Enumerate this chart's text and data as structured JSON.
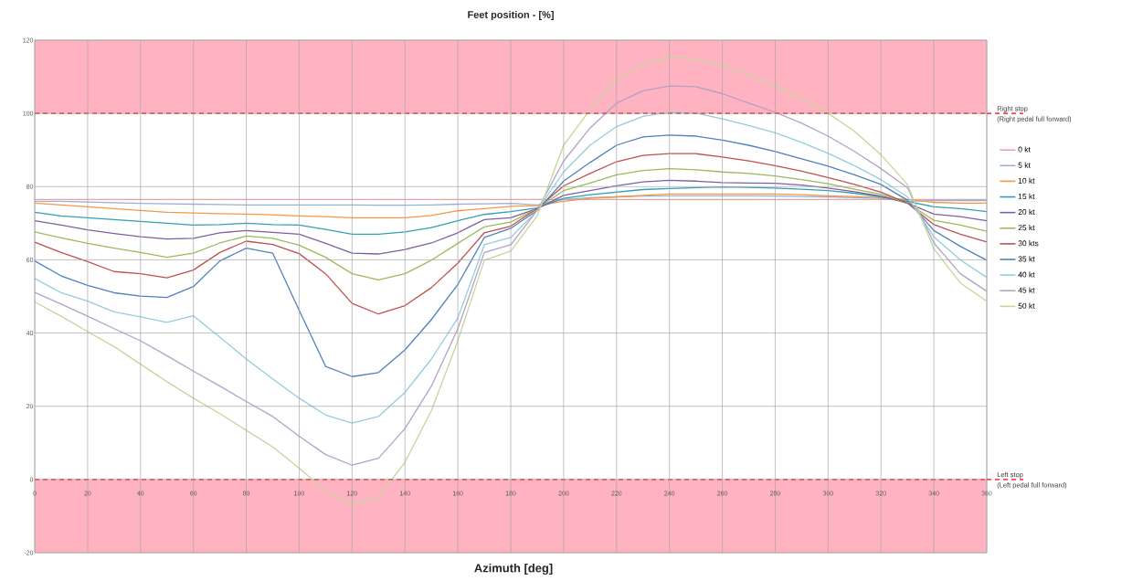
{
  "chart_data": {
    "type": "line",
    "title": "Feet position - [%]",
    "xlabel": "Azimuth [deg]",
    "x": [
      0,
      10,
      20,
      30,
      40,
      50,
      60,
      70,
      80,
      90,
      100,
      110,
      120,
      130,
      140,
      150,
      160,
      170,
      180,
      190,
      200,
      210,
      220,
      230,
      240,
      250,
      260,
      270,
      280,
      290,
      300,
      310,
      320,
      330,
      340,
      350,
      360
    ],
    "series": [
      {
        "name": "0 kt",
        "color": "#e6a5a5",
        "values": [
          76.5,
          76.5,
          76.5,
          76.5,
          76.5,
          76.5,
          76.5,
          76.5,
          76.5,
          76.5,
          76.5,
          76.5,
          76.5,
          76.5,
          76.5,
          76.5,
          76.5,
          76.5,
          76.5,
          76.5,
          76.5,
          76.5,
          76.5,
          76.5,
          76.5,
          76.5,
          76.5,
          76.5,
          76.5,
          76.5,
          76.5,
          76.5,
          76.5,
          76.5,
          76.5,
          76.5,
          76.5
        ]
      },
      {
        "name": "5 kt",
        "color": "#95b3d7",
        "values": [
          76,
          76,
          75.8,
          75.6,
          75.4,
          75.3,
          75.2,
          75.1,
          75,
          75,
          75,
          75,
          75,
          74.9,
          74.9,
          75,
          75.2,
          75.3,
          75.4,
          75,
          76.5,
          77,
          77.2,
          77.4,
          77.5,
          77.5,
          77.5,
          77.5,
          77.4,
          77.3,
          77.2,
          77,
          76.8,
          76,
          76.2,
          76.2,
          76.2
        ]
      },
      {
        "name": "10 kt",
        "color": "#f79646",
        "values": [
          75.5,
          75,
          74.5,
          74,
          73.5,
          73,
          72.8,
          72.6,
          72.5,
          72.3,
          72,
          71.8,
          71.5,
          71.5,
          71.5,
          72.1,
          73.4,
          74,
          74.6,
          74.8,
          76,
          76.8,
          77.2,
          77.6,
          78,
          78,
          78,
          78,
          78,
          77.8,
          77.5,
          77.3,
          77,
          76.5,
          75.7,
          75.5,
          75.5
        ]
      },
      {
        "name": "15 kt",
        "color": "#31a0b5",
        "values": [
          73,
          72,
          71.5,
          71,
          70.5,
          70,
          69.5,
          69.6,
          70,
          69.6,
          69.5,
          68.3,
          67,
          67,
          67.6,
          68.8,
          70.7,
          72.4,
          73.2,
          74.2,
          76.8,
          77.8,
          78.5,
          79.2,
          79.5,
          79.7,
          79.9,
          79.8,
          79.6,
          79.3,
          78.9,
          78.2,
          77.2,
          76,
          74.5,
          74,
          73.2
        ]
      },
      {
        "name": "20 kt",
        "color": "#7f5fa0",
        "values": [
          70.7,
          69.5,
          68.2,
          67.2,
          66.3,
          65.7,
          65.9,
          67.4,
          68,
          67.5,
          67,
          64.5,
          61.8,
          61.6,
          62.8,
          64.6,
          67.4,
          71,
          71.5,
          74,
          77.6,
          78.9,
          80.2,
          81.3,
          81.7,
          81.5,
          81.1,
          81,
          80.9,
          80.4,
          79.6,
          78.6,
          77.4,
          75.5,
          72.5,
          71.8,
          70.7
        ]
      },
      {
        "name": "25 kt",
        "color": "#9bbb59",
        "values": [
          67.6,
          66,
          64.5,
          63.2,
          62,
          60.7,
          61.8,
          64.6,
          66.5,
          65.9,
          64,
          60.7,
          56.2,
          54.5,
          56.2,
          59.9,
          64.5,
          69,
          70.3,
          74,
          78.9,
          81,
          83.2,
          84.4,
          84.9,
          84.6,
          84,
          83.6,
          82.9,
          81.9,
          80.8,
          79.3,
          77.9,
          75.5,
          70.8,
          69.5,
          67.8
        ]
      },
      {
        "name": "30 kts",
        "color": "#c0504d",
        "values": [
          64.8,
          62,
          59.5,
          56.8,
          56.2,
          55.1,
          57.2,
          62,
          65.1,
          64.2,
          61.7,
          56.2,
          48.1,
          45.2,
          47.5,
          52.4,
          59.1,
          67.4,
          69.2,
          74,
          80.2,
          83.6,
          86.8,
          88.5,
          89,
          89,
          88.1,
          87,
          85.7,
          84.2,
          82.5,
          80.6,
          78.5,
          75.5,
          69.6,
          67,
          64.9
        ]
      },
      {
        "name": "35 kt",
        "color": "#4f81bd",
        "values": [
          59.7,
          55.6,
          53,
          51,
          50.1,
          49.7,
          52.7,
          59.7,
          63.2,
          61.8,
          46.2,
          30.9,
          28.1,
          29.2,
          35.4,
          43.7,
          53.3,
          66.1,
          68.6,
          73.5,
          81.5,
          86.6,
          91.3,
          93.6,
          94.1,
          93.8,
          92.7,
          91.3,
          89.6,
          87.6,
          85.6,
          83.2,
          80.6,
          76.3,
          68,
          63.7,
          59.9
        ]
      },
      {
        "name": "40 kt",
        "color": "#93cddd",
        "values": [
          54.9,
          51,
          48.7,
          45.8,
          44.4,
          42.9,
          44.7,
          38.9,
          32.9,
          27.5,
          22.2,
          17.6,
          15.4,
          17.2,
          23.8,
          32.9,
          44.1,
          64.1,
          66.1,
          73.5,
          84,
          91.3,
          96.4,
          99.2,
          100.3,
          100.1,
          98.5,
          96.7,
          94.7,
          92.1,
          89.1,
          85.7,
          81.9,
          77.2,
          66.3,
          60,
          55.2
        ]
      },
      {
        "name": "45 kt",
        "color": "#b3a2c7",
        "values": [
          51.1,
          47.9,
          44.6,
          41.2,
          37.9,
          33.8,
          29.6,
          25.5,
          21.3,
          17.2,
          11.8,
          6.8,
          3.9,
          5.8,
          13.9,
          25.5,
          41.2,
          62,
          64.1,
          73.5,
          87,
          96,
          102.8,
          106.2,
          107.5,
          107.3,
          105.4,
          102.8,
          100.3,
          97.3,
          93.8,
          89.6,
          84.9,
          79.7,
          64.6,
          56.2,
          51.4
        ]
      },
      {
        "name": "50 kt",
        "color": "#c3d69b",
        "values": [
          48.5,
          44.6,
          40.4,
          36.3,
          31.5,
          26.7,
          22.2,
          18,
          13.4,
          8.9,
          3.1,
          -3.1,
          -6.9,
          -4.8,
          4.7,
          18.8,
          37.9,
          59.9,
          62.4,
          72,
          91.3,
          101,
          109.2,
          113.5,
          115.4,
          114.8,
          113.1,
          110.5,
          107.5,
          104.1,
          100,
          95.1,
          88.7,
          80.6,
          63,
          53.7,
          48.7
        ]
      }
    ],
    "xlim": [
      0,
      360
    ],
    "ylim": [
      -20,
      120
    ],
    "xticks": [
      0,
      20,
      40,
      60,
      80,
      100,
      120,
      140,
      160,
      180,
      200,
      220,
      240,
      260,
      280,
      300,
      320,
      340,
      360
    ],
    "yticks": [
      -20,
      0,
      20,
      40,
      60,
      80,
      100,
      120
    ],
    "grid": true,
    "legend": "right",
    "marker": "none",
    "line_style": "solid",
    "bands": [
      {
        "axis": "y",
        "from": 100,
        "to": 120,
        "color": "#ffb3c1"
      },
      {
        "axis": "y",
        "from": -20,
        "to": 0,
        "color": "#ffb3c1"
      }
    ],
    "ref_lines": [
      {
        "axis": "y",
        "value": 100,
        "label": "Right stop",
        "color": "#ff0000",
        "line_style": "dashed"
      },
      {
        "axis": "y",
        "value": 0,
        "label": "Left stop",
        "color": "#ff0000",
        "line_style": "dashed"
      }
    ],
    "annotations": [
      "(Right pedal full forward)",
      "(Left pedal full forward)"
    ]
  }
}
